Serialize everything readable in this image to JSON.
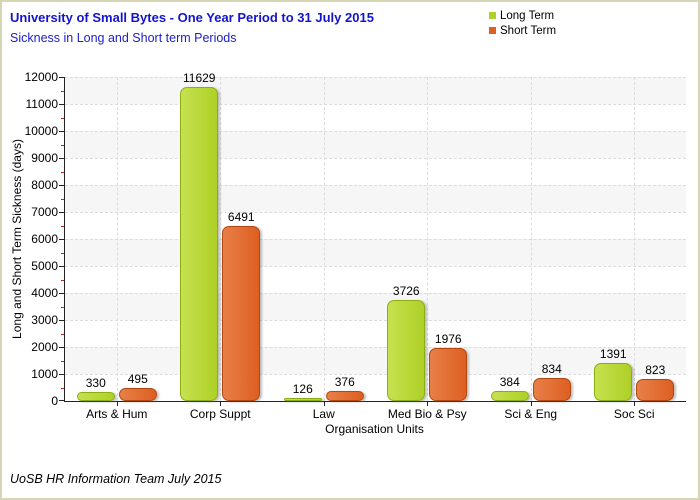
{
  "chart_data": {
    "type": "bar",
    "title": "University of Small Bytes - One Year Period to 31 July 2015",
    "subtitle": "Sickness in Long and Short term Periods",
    "xlabel": "Organisation Units",
    "ylabel": "Long and Short Term Sickness (days)",
    "categories": [
      "Arts & Hum",
      "Corp Suppt",
      "Law",
      "Med Bio & Psy",
      "Sci & Eng",
      "Soc Sci"
    ],
    "series": [
      {
        "name": "Long Term",
        "values": [
          330,
          11629,
          126,
          3726,
          384,
          1391
        ],
        "fill": "#aed027",
        "fill_light": "#c6e14f",
        "border": "#8dad17"
      },
      {
        "name": "Short Term",
        "values": [
          495,
          6491,
          376,
          1976,
          834,
          823
        ],
        "fill": "#dd5f22",
        "fill_light": "#e87f48",
        "border": "#b2480f"
      }
    ],
    "value_labels": [
      [
        "330",
        "11629",
        "126",
        "3726",
        "384",
        "1391"
      ],
      [
        "495",
        "6491",
        "376",
        "1976",
        "834",
        "823"
      ]
    ],
    "ylim": [
      0,
      12000
    ],
    "ytick_step": 1000,
    "yticks": [
      "0",
      "1000",
      "2000",
      "3000",
      "4000",
      "5000",
      "6000",
      "7000",
      "8000",
      "9000",
      "10000",
      "11000",
      "12000"
    ],
    "grid": "horizontal dashed lines every 1000 with alternating band shading; dashed vertical line at each category center",
    "legend_position": "top-right",
    "band_color": "#f6f6f6",
    "gridline_color": "#dcdcdc",
    "minor_tick_color": "#cc2020"
  },
  "header": {
    "title_color": "#1414cc"
  },
  "footer": {
    "credit": "UoSB HR Information Team July 2015"
  },
  "frame": {
    "border_color": "#d6d6b4"
  }
}
